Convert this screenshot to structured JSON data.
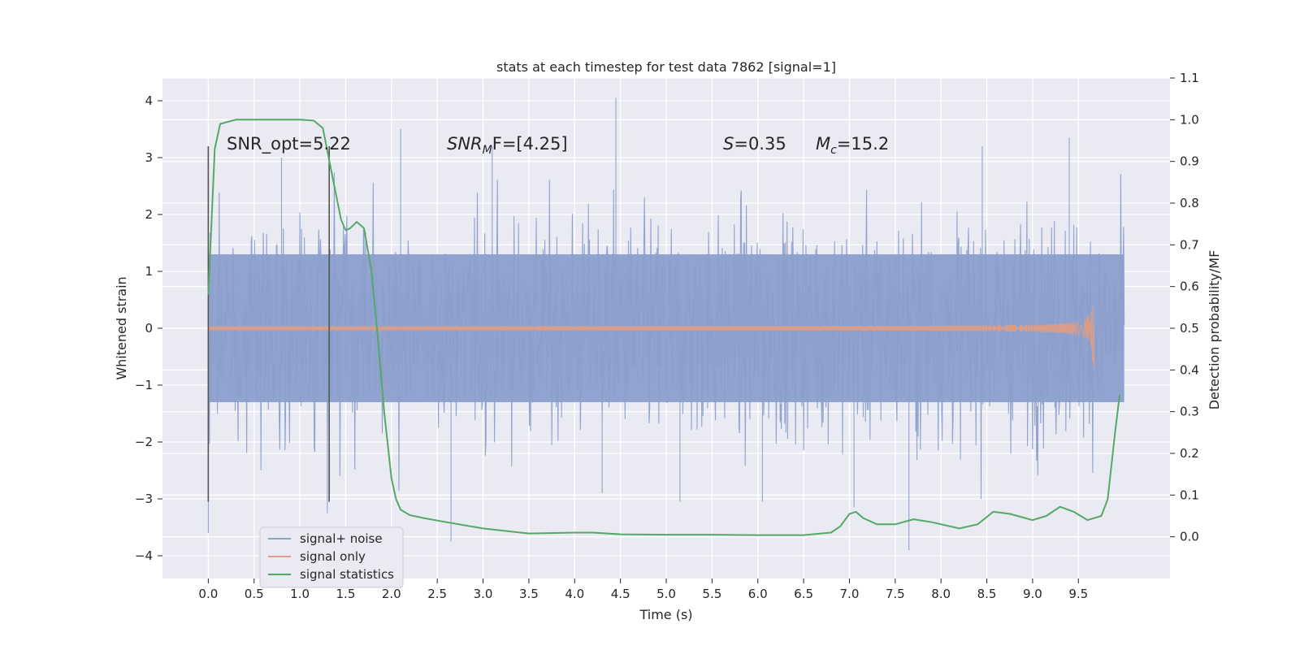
{
  "chart_data": {
    "type": "line",
    "title": "stats at each timestep for test data 7862 [signal=1]",
    "xlabel": "Time (s)",
    "ylabel": "Whitened strain",
    "y2label": "Detection probability/MF",
    "xlim": [
      -0.5,
      10.5
    ],
    "ylim": [
      -4.4,
      4.4
    ],
    "y2lim": [
      -0.1,
      1.1
    ],
    "x_ticks": [
      0.0,
      0.5,
      1.0,
      1.5,
      2.0,
      2.5,
      3.0,
      3.5,
      4.0,
      4.5,
      5.0,
      5.5,
      6.0,
      6.5,
      7.0,
      7.5,
      8.0,
      8.5,
      9.0,
      9.5
    ],
    "x_tick_labels": [
      "0.0",
      "0.5",
      "1.0",
      "1.5",
      "2.0",
      "2.5",
      "3.0",
      "3.5",
      "4.0",
      "4.5",
      "5.0",
      "5.5",
      "6.0",
      "6.5",
      "7.0",
      "7.5",
      "8.0",
      "8.5",
      "9.0",
      "9.5"
    ],
    "y_ticks": [
      -4,
      -3,
      -2,
      -1,
      0,
      1,
      2,
      3,
      4
    ],
    "y_tick_labels": [
      "−4",
      "−3",
      "−2",
      "−1",
      "0",
      "1",
      "2",
      "3",
      "4"
    ],
    "y2_ticks": [
      0.0,
      0.1,
      0.2,
      0.3,
      0.4,
      0.5,
      0.6,
      0.7,
      0.8,
      0.9,
      1.0,
      1.1
    ],
    "y2_tick_labels": [
      "0.0",
      "0.1",
      "0.2",
      "0.3",
      "0.4",
      "0.5",
      "0.6",
      "0.7",
      "0.8",
      "0.9",
      "1.0",
      "1.1"
    ],
    "grid": true,
    "legend_position": "lower-left",
    "annotations": {
      "snr_opt": "SNR_opt=5.22",
      "snr_mf_base": "SNR",
      "snr_mf_sub": "M",
      "snr_mf_rest": "F=[4.25]",
      "s_var": "S",
      "s_val": "=0.35",
      "mc_var": "M",
      "mc_sub": "c",
      "mc_val": "=15.2"
    },
    "vertical_markers": [
      {
        "x": 0.0,
        "y_range": [
          -3.05,
          3.2
        ]
      },
      {
        "x": 1.32,
        "y_range": [
          -3.05,
          3.2
        ]
      }
    ],
    "series": [
      {
        "name": "signal+ noise",
        "color": "#8c9fcc",
        "kind": "noise",
        "x_range": [
          0.0,
          10.0
        ],
        "envelope_abs": 1.3,
        "extremes": [
          {
            "x": 0.0,
            "y": -3.6
          },
          {
            "x": 0.8,
            "y": 3.0
          },
          {
            "x": 1.3,
            "y": -3.25
          },
          {
            "x": 2.1,
            "y": 3.5
          },
          {
            "x": 2.65,
            "y": -3.75
          },
          {
            "x": 3.1,
            "y": 3.2
          },
          {
            "x": 4.45,
            "y": 4.05
          },
          {
            "x": 4.3,
            "y": -2.9
          },
          {
            "x": 5.15,
            "y": -3.05
          },
          {
            "x": 6.05,
            "y": -3.05
          },
          {
            "x": 7.05,
            "y": -3.15
          },
          {
            "x": 7.65,
            "y": -3.9
          },
          {
            "x": 8.45,
            "y": 3.2
          },
          {
            "x": 9.4,
            "y": 3.35
          }
        ]
      },
      {
        "name": "signal only",
        "color": "#dd9e85",
        "kind": "chirp",
        "x_range": [
          0.0,
          9.67
        ],
        "peak_x": 9.67,
        "peak_amplitude": 1.05
      },
      {
        "name": "signal statistics",
        "color": "#55a868",
        "axis": "y2",
        "x": [
          0.0,
          0.07,
          0.13,
          0.3,
          0.6,
          1.0,
          1.15,
          1.25,
          1.35,
          1.45,
          1.5,
          1.55,
          1.62,
          1.7,
          1.78,
          1.85,
          1.92,
          2.0,
          2.05,
          2.1,
          2.2,
          2.35,
          2.6,
          3.0,
          3.5,
          4.0,
          4.2,
          4.5,
          5.0,
          5.5,
          6.0,
          6.5,
          6.8,
          6.9,
          7.0,
          7.07,
          7.15,
          7.3,
          7.5,
          7.7,
          7.9,
          8.2,
          8.4,
          8.57,
          8.75,
          9.0,
          9.15,
          9.3,
          9.45,
          9.6,
          9.75,
          9.82,
          9.9,
          9.95
        ],
        "y": [
          0.58,
          0.93,
          0.99,
          1.0,
          1.0,
          1.0,
          0.998,
          0.98,
          0.87,
          0.76,
          0.735,
          0.74,
          0.755,
          0.74,
          0.64,
          0.48,
          0.3,
          0.14,
          0.09,
          0.065,
          0.052,
          0.045,
          0.035,
          0.02,
          0.008,
          0.01,
          0.01,
          0.006,
          0.005,
          0.005,
          0.004,
          0.004,
          0.01,
          0.025,
          0.055,
          0.06,
          0.045,
          0.03,
          0.03,
          0.042,
          0.035,
          0.02,
          0.03,
          0.06,
          0.055,
          0.04,
          0.05,
          0.072,
          0.06,
          0.04,
          0.05,
          0.09,
          0.25,
          0.34
        ]
      }
    ]
  }
}
